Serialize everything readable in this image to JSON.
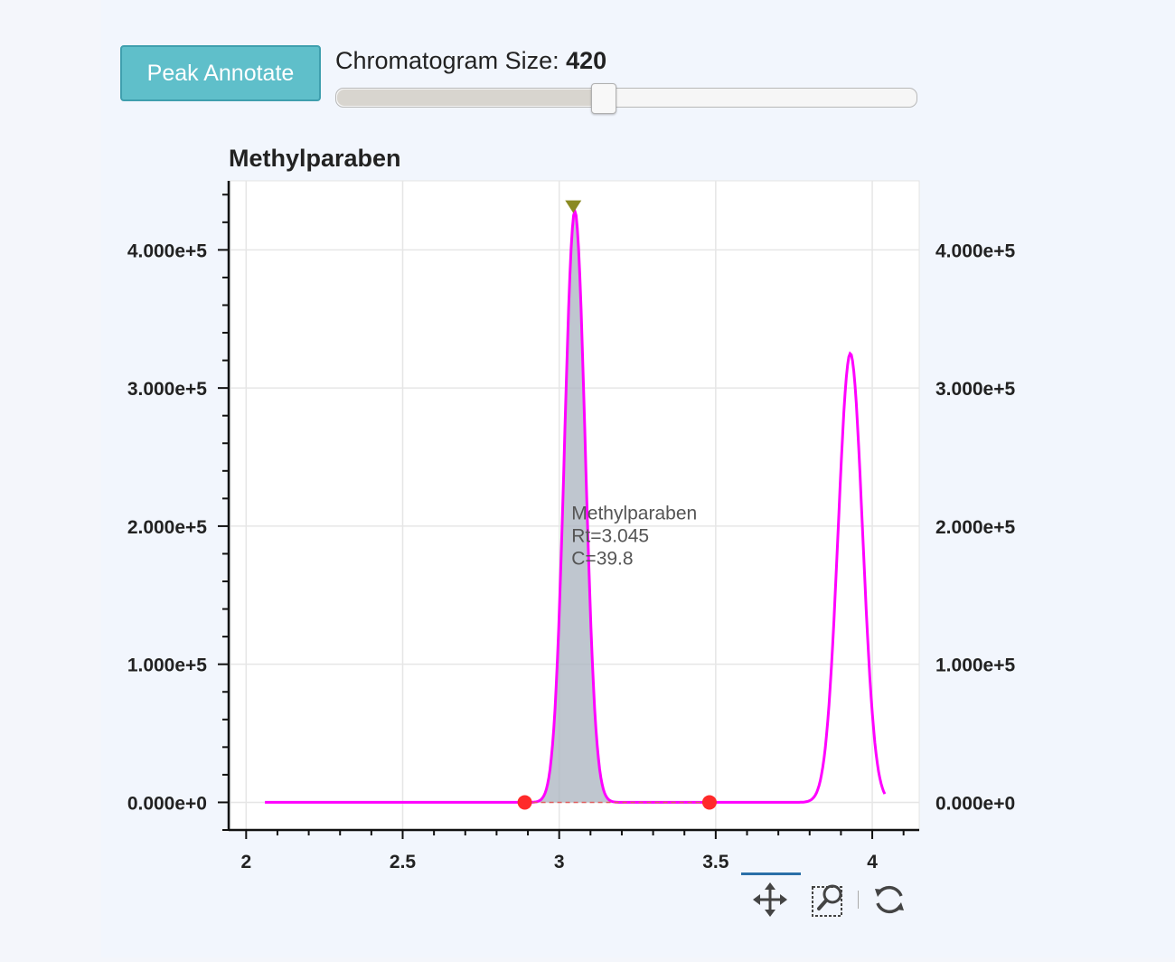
{
  "controls": {
    "button_label": "Peak Annotate",
    "slider_label": "Chromatogram Size: ",
    "slider_value": "420",
    "slider_fraction": 0.46
  },
  "toolbar": {
    "tools": [
      "pan-icon",
      "box-zoom-icon",
      "reset-icon"
    ]
  },
  "chart_data": {
    "type": "line",
    "title": "Methylparaben",
    "xlabel": "",
    "ylabel": "",
    "xlim": [
      1.95,
      4.15
    ],
    "ylim": [
      -20000,
      450000
    ],
    "x_ticks": [
      2,
      2.5,
      3,
      3.5,
      4
    ],
    "x_tick_labels": [
      "2",
      "2.5",
      "3",
      "3.5",
      "4"
    ],
    "y_ticks": [
      0,
      100000,
      200000,
      300000,
      400000
    ],
    "y_tick_labels": [
      "0.000e+0",
      "1.000e+5",
      "2.000e+5",
      "3.000e+5",
      "4.000e+5"
    ],
    "y_tick_labels_right": [
      "0.000e+0",
      "1.000e+5",
      "2.000e+5",
      "3.000e+5",
      "4.000e+5"
    ],
    "grid": true,
    "series": [
      {
        "color": "#ff00ff",
        "peaks": [
          {
            "center": 3.05,
            "height": 428000,
            "sigma": 0.033
          },
          {
            "center": 3.93,
            "height": 325000,
            "sigma": 0.039
          }
        ],
        "x_range": [
          2.06,
          4.04
        ]
      }
    ],
    "shaded_peak": {
      "x_start": 2.89,
      "x_end": 3.48,
      "fill": "#a9b3bf"
    },
    "boundary_markers": [
      {
        "x": 2.89,
        "y": 0,
        "color": "#ff2a2a"
      },
      {
        "x": 3.48,
        "y": 0,
        "color": "#ff2a2a"
      }
    ],
    "apex_marker": {
      "x": 3.045,
      "y": 428000,
      "color": "#8a8a22"
    },
    "annotation": {
      "lines": [
        "Methylparaben",
        "Rt=3.045",
        "C=39.8"
      ],
      "x": 3.045,
      "y": 205000
    }
  }
}
